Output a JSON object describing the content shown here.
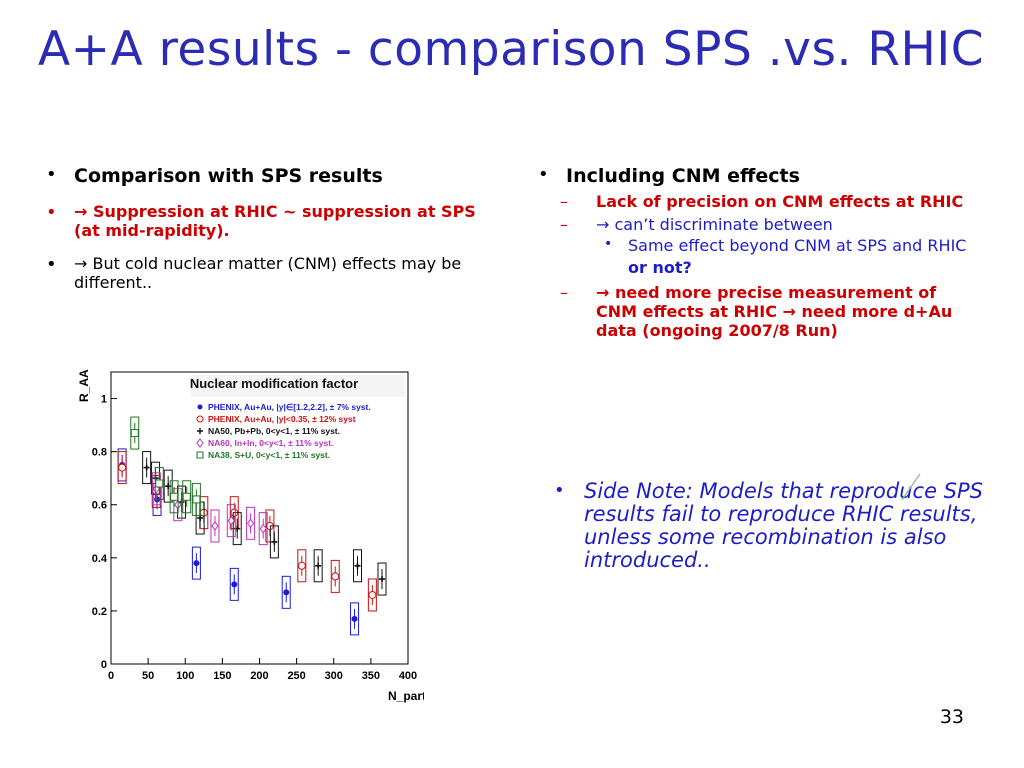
{
  "slide": {
    "title": "A+A results - comparison SPS .vs. RHIC",
    "page_number": "33"
  },
  "left": {
    "bullet1": "Comparison with SPS results",
    "bullet2": "→ Suppression at RHIC ~ suppression at SPS (at mid-rapidity).",
    "bullet3": "→ But cold nuclear matter (CNM) effects may be different.."
  },
  "right": {
    "heading": "Including CNM effects",
    "sub1": "Lack of precision on CNM effects at RHIC",
    "sub2": "→ can’t discriminate between",
    "sub2a": "Same  effect beyond CNM at SPS and RHIC",
    "sub2b": "or not?",
    "sub3": "→ need more precise measurement of CNM effects at RHIC → need more d+Au data (ongoing 2007/8 Run)",
    "side_note": "Side Note: Models that reproduce SPS results fail to reproduce RHIC results, unless some recombination is also introduced.."
  },
  "chart_data": {
    "type": "scatter",
    "title": "Nuclear modification factor",
    "xlabel": "N_part",
    "ylabel": "R_AA",
    "xlim": [
      0,
      400
    ],
    "ylim": [
      0,
      1.1
    ],
    "xticks": [
      "0",
      "50",
      "100",
      "150",
      "200",
      "250",
      "300",
      "350",
      "400"
    ],
    "yticks": [
      "0",
      "0.2",
      "0.4",
      "0.6",
      "0.8",
      "1"
    ],
    "legend_position": "top-right",
    "series": [
      {
        "name": "PHENIX, Au+Au, |y|∈[1.2,2.2], ± 7% syst.",
        "color": "#1b1bd8",
        "marker": "filled-circle",
        "x": [
          15,
          62,
          115,
          166,
          236,
          328
        ],
        "y": [
          0.75,
          0.62,
          0.38,
          0.3,
          0.27,
          0.17
        ]
      },
      {
        "name": "PHENIX, Au+Au, |y|<0.35, ± 12% syst",
        "color": "#cc1111",
        "marker": "open-circle",
        "x": [
          15,
          61,
          125,
          166,
          214,
          257,
          302,
          352
        ],
        "y": [
          0.74,
          0.65,
          0.57,
          0.57,
          0.52,
          0.37,
          0.33,
          0.26
        ]
      },
      {
        "name": "NA50, Pb+Pb, 0<y<1, ± 11% syst.",
        "color": "#111111",
        "marker": "open-cross",
        "x": [
          48,
          60,
          77,
          95,
          120,
          170,
          220,
          279,
          332,
          365
        ],
        "y": [
          0.74,
          0.7,
          0.67,
          0.61,
          0.55,
          0.51,
          0.46,
          0.37,
          0.37,
          0.32
        ]
      },
      {
        "name": "NA60, In+In, 0<y<1, ± 11% syst.",
        "color": "#bb33bb",
        "marker": "open-diamond",
        "x": [
          61,
          90,
          140,
          162,
          188,
          205
        ],
        "y": [
          0.66,
          0.6,
          0.52,
          0.54,
          0.53,
          0.51
        ]
      },
      {
        "name": "NA38, S+U, 0<y<1, ± 11% syst.",
        "color": "#227722",
        "marker": "open-square",
        "x": [
          32,
          65,
          85,
          102,
          115
        ],
        "y": [
          0.87,
          0.68,
          0.63,
          0.63,
          0.62
        ]
      }
    ]
  }
}
